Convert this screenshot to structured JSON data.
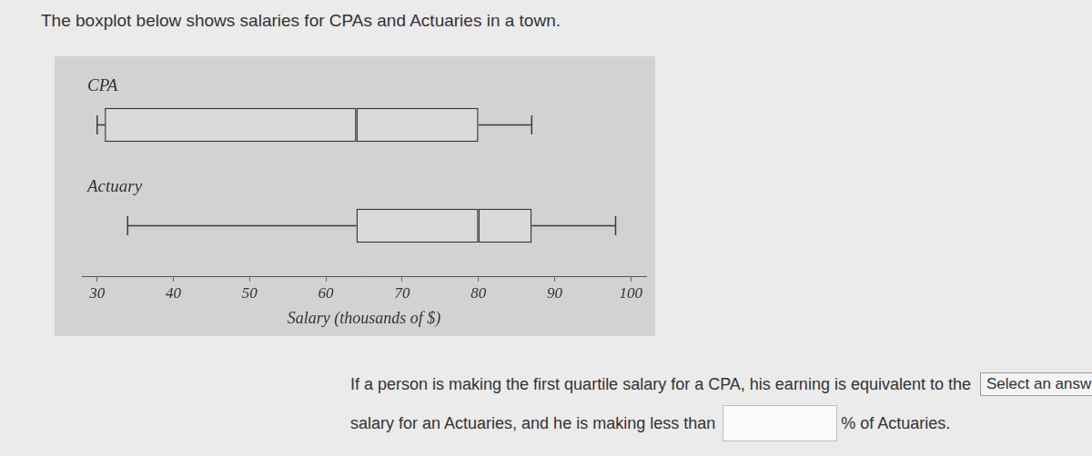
{
  "header": {
    "title": "The boxplot below shows salaries for CPAs and Actuaries in a town."
  },
  "chart_data": {
    "type": "boxplot",
    "orientation": "horizontal",
    "categories": [
      "CPA",
      "Actuary"
    ],
    "values": [
      [
        30,
        31,
        64,
        80,
        87
      ],
      [
        34,
        64,
        80,
        87,
        98
      ]
    ],
    "xlabel": "Salary (thousands of $)",
    "xlim": [
      28,
      102
    ],
    "xticks": [
      30,
      40,
      50,
      60,
      70,
      80,
      90,
      100
    ],
    "grid": false,
    "color": "#3a3a3a"
  },
  "question": {
    "line1": "If a person is making the first quartile salary for a CPA, his earning is equivalent to the",
    "dropdown": "Select an answer",
    "line2": "salary for an Actuaries, and he is making less than",
    "after_input": "% of Actuaries."
  }
}
